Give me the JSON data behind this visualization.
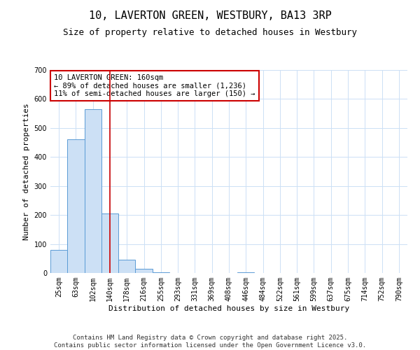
{
  "title_line1": "10, LAVERTON GREEN, WESTBURY, BA13 3RP",
  "title_line2": "Size of property relative to detached houses in Westbury",
  "xlabel": "Distribution of detached houses by size in Westbury",
  "ylabel": "Number of detached properties",
  "categories": [
    "25sqm",
    "63sqm",
    "102sqm",
    "140sqm",
    "178sqm",
    "216sqm",
    "255sqm",
    "293sqm",
    "331sqm",
    "369sqm",
    "408sqm",
    "446sqm",
    "484sqm",
    "522sqm",
    "561sqm",
    "599sqm",
    "637sqm",
    "675sqm",
    "714sqm",
    "752sqm",
    "790sqm"
  ],
  "values": [
    80,
    460,
    565,
    205,
    45,
    15,
    2,
    0,
    0,
    0,
    0,
    2,
    0,
    0,
    0,
    0,
    0,
    0,
    0,
    0,
    0
  ],
  "bar_color": "#cce0f5",
  "bar_edge_color": "#5b9bd5",
  "vline_x": 3,
  "vline_color": "#cc0000",
  "annotation_text": "10 LAVERTON GREEN: 160sqm\n← 89% of detached houses are smaller (1,236)\n11% of semi-detached houses are larger (150) →",
  "annotation_box_color": "#cc0000",
  "annotation_bg_color": "#ffffff",
  "ylim": [
    0,
    700
  ],
  "yticks": [
    0,
    100,
    200,
    300,
    400,
    500,
    600,
    700
  ],
  "footnote": "Contains HM Land Registry data © Crown copyright and database right 2025.\nContains public sector information licensed under the Open Government Licence v3.0.",
  "bg_color": "#ffffff",
  "grid_color": "#cce0f5",
  "title_fontsize": 11,
  "subtitle_fontsize": 9,
  "axis_label_fontsize": 8,
  "tick_fontsize": 7,
  "annotation_fontsize": 7.5,
  "footnote_fontsize": 6.5
}
